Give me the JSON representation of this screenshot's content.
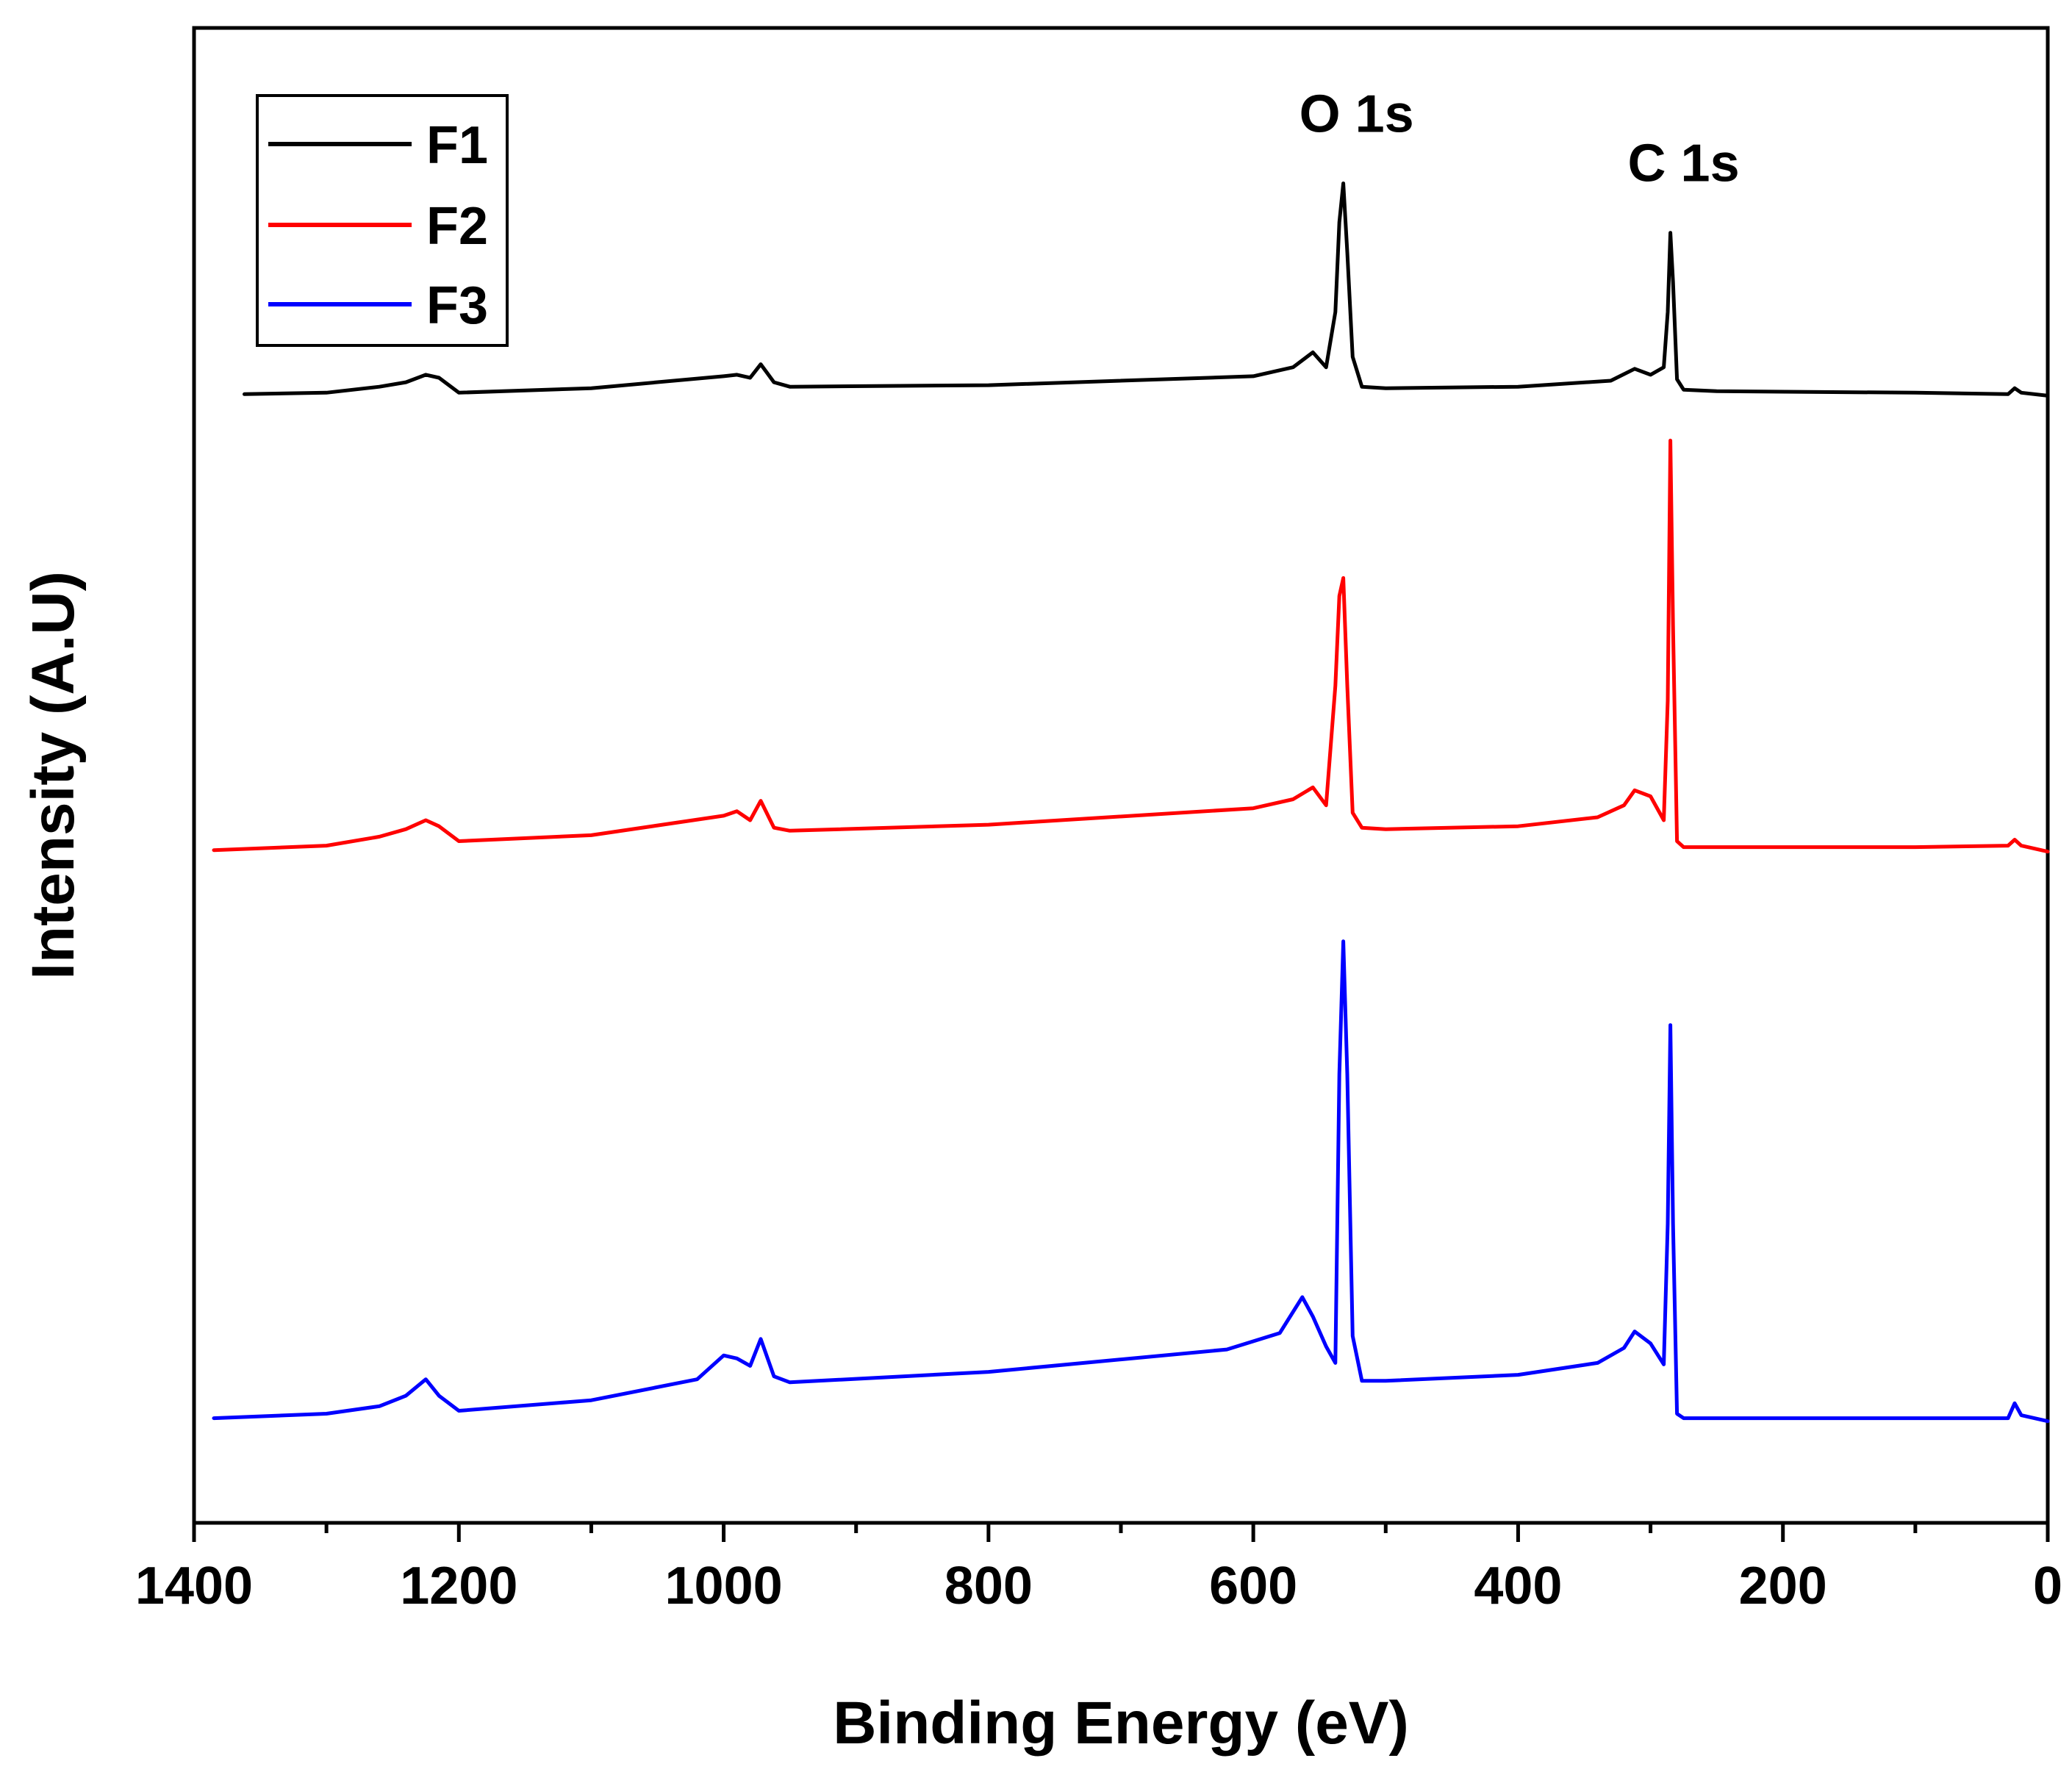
{
  "chart_data": {
    "type": "line",
    "title": "",
    "xlabel": "Binding Energy (eV)",
    "ylabel": "Intensity (A.U)",
    "xlim": [
      1400,
      0
    ],
    "ylim": [
      0,
      100
    ],
    "x_ticks": [
      1400,
      1200,
      1000,
      800,
      600,
      400,
      200,
      0
    ],
    "x_tick_labels": [
      "1400",
      "1200",
      "1000",
      "800",
      "600",
      "400",
      "200",
      "0"
    ],
    "grid": false,
    "legend_position": "top-left",
    "annotations": [
      {
        "text": "O 1s",
        "x": 532
      },
      {
        "text": "C 1s",
        "x": 285
      }
    ],
    "series": [
      {
        "name": "F1",
        "color": "#000000",
        "x": [
          1362,
          1300,
          1260,
          1240,
          1225,
          1215,
          1200,
          1100,
          1000,
          990,
          980,
          972,
          962,
          950,
          800,
          600,
          570,
          555,
          545,
          538,
          535,
          532,
          529,
          525,
          518,
          500,
          400,
          330,
          312,
          300,
          290,
          287,
          285,
          283,
          280,
          275,
          250,
          100,
          30,
          25,
          20,
          0
        ],
        "y": [
          75.5,
          75.6,
          76.0,
          76.3,
          76.8,
          76.6,
          75.6,
          75.9,
          76.7,
          76.8,
          76.6,
          77.5,
          76.3,
          76.0,
          76.1,
          76.7,
          77.3,
          78.3,
          77.3,
          81.0,
          87.0,
          89.6,
          85.0,
          78.0,
          76.0,
          75.9,
          76.0,
          76.4,
          77.2,
          76.8,
          77.3,
          81.0,
          86.3,
          83.0,
          76.5,
          75.8,
          75.7,
          75.6,
          75.5,
          75.9,
          75.6,
          75.4
        ]
      },
      {
        "name": "F2",
        "color": "#ff0000",
        "x": [
          1385,
          1300,
          1260,
          1240,
          1225,
          1215,
          1200,
          1100,
          1000,
          990,
          980,
          972,
          962,
          950,
          800,
          600,
          570,
          555,
          545,
          538,
          535,
          532,
          529,
          525,
          518,
          500,
          400,
          340,
          320,
          312,
          300,
          290,
          287,
          285,
          283,
          280,
          275,
          250,
          100,
          30,
          25,
          20,
          0
        ],
        "y": [
          45.0,
          45.3,
          45.9,
          46.4,
          47.0,
          46.6,
          45.6,
          46.0,
          47.3,
          47.6,
          47.0,
          48.3,
          46.5,
          46.3,
          46.7,
          47.8,
          48.4,
          49.2,
          48.0,
          56.0,
          62.0,
          63.2,
          56.0,
          47.5,
          46.5,
          46.4,
          46.6,
          47.2,
          48.0,
          49.0,
          48.6,
          47.0,
          55.0,
          72.4,
          60.0,
          45.6,
          45.2,
          45.2,
          45.2,
          45.3,
          45.7,
          45.3,
          44.9
        ]
      },
      {
        "name": "F3",
        "color": "#0000ff",
        "x": [
          1385,
          1300,
          1260,
          1240,
          1225,
          1215,
          1200,
          1100,
          1020,
          1000,
          990,
          980,
          972,
          962,
          950,
          800,
          620,
          580,
          563,
          555,
          545,
          538,
          535,
          532,
          529,
          525,
          518,
          500,
          400,
          340,
          320,
          312,
          300,
          290,
          287,
          285,
          283,
          280,
          275,
          250,
          100,
          30,
          25,
          20,
          0
        ],
        "y": [
          7.0,
          7.3,
          7.8,
          8.5,
          9.6,
          8.5,
          7.5,
          8.2,
          9.6,
          11.2,
          11.0,
          10.5,
          12.3,
          9.8,
          9.4,
          10.1,
          11.6,
          12.7,
          15.1,
          13.8,
          11.8,
          10.7,
          30.0,
          38.9,
          30.0,
          12.5,
          9.5,
          9.5,
          9.9,
          10.7,
          11.7,
          12.8,
          12.0,
          10.6,
          20.0,
          33.3,
          20.0,
          7.3,
          7.0,
          7.0,
          7.0,
          7.0,
          8.0,
          7.2,
          6.8
        ]
      }
    ]
  }
}
